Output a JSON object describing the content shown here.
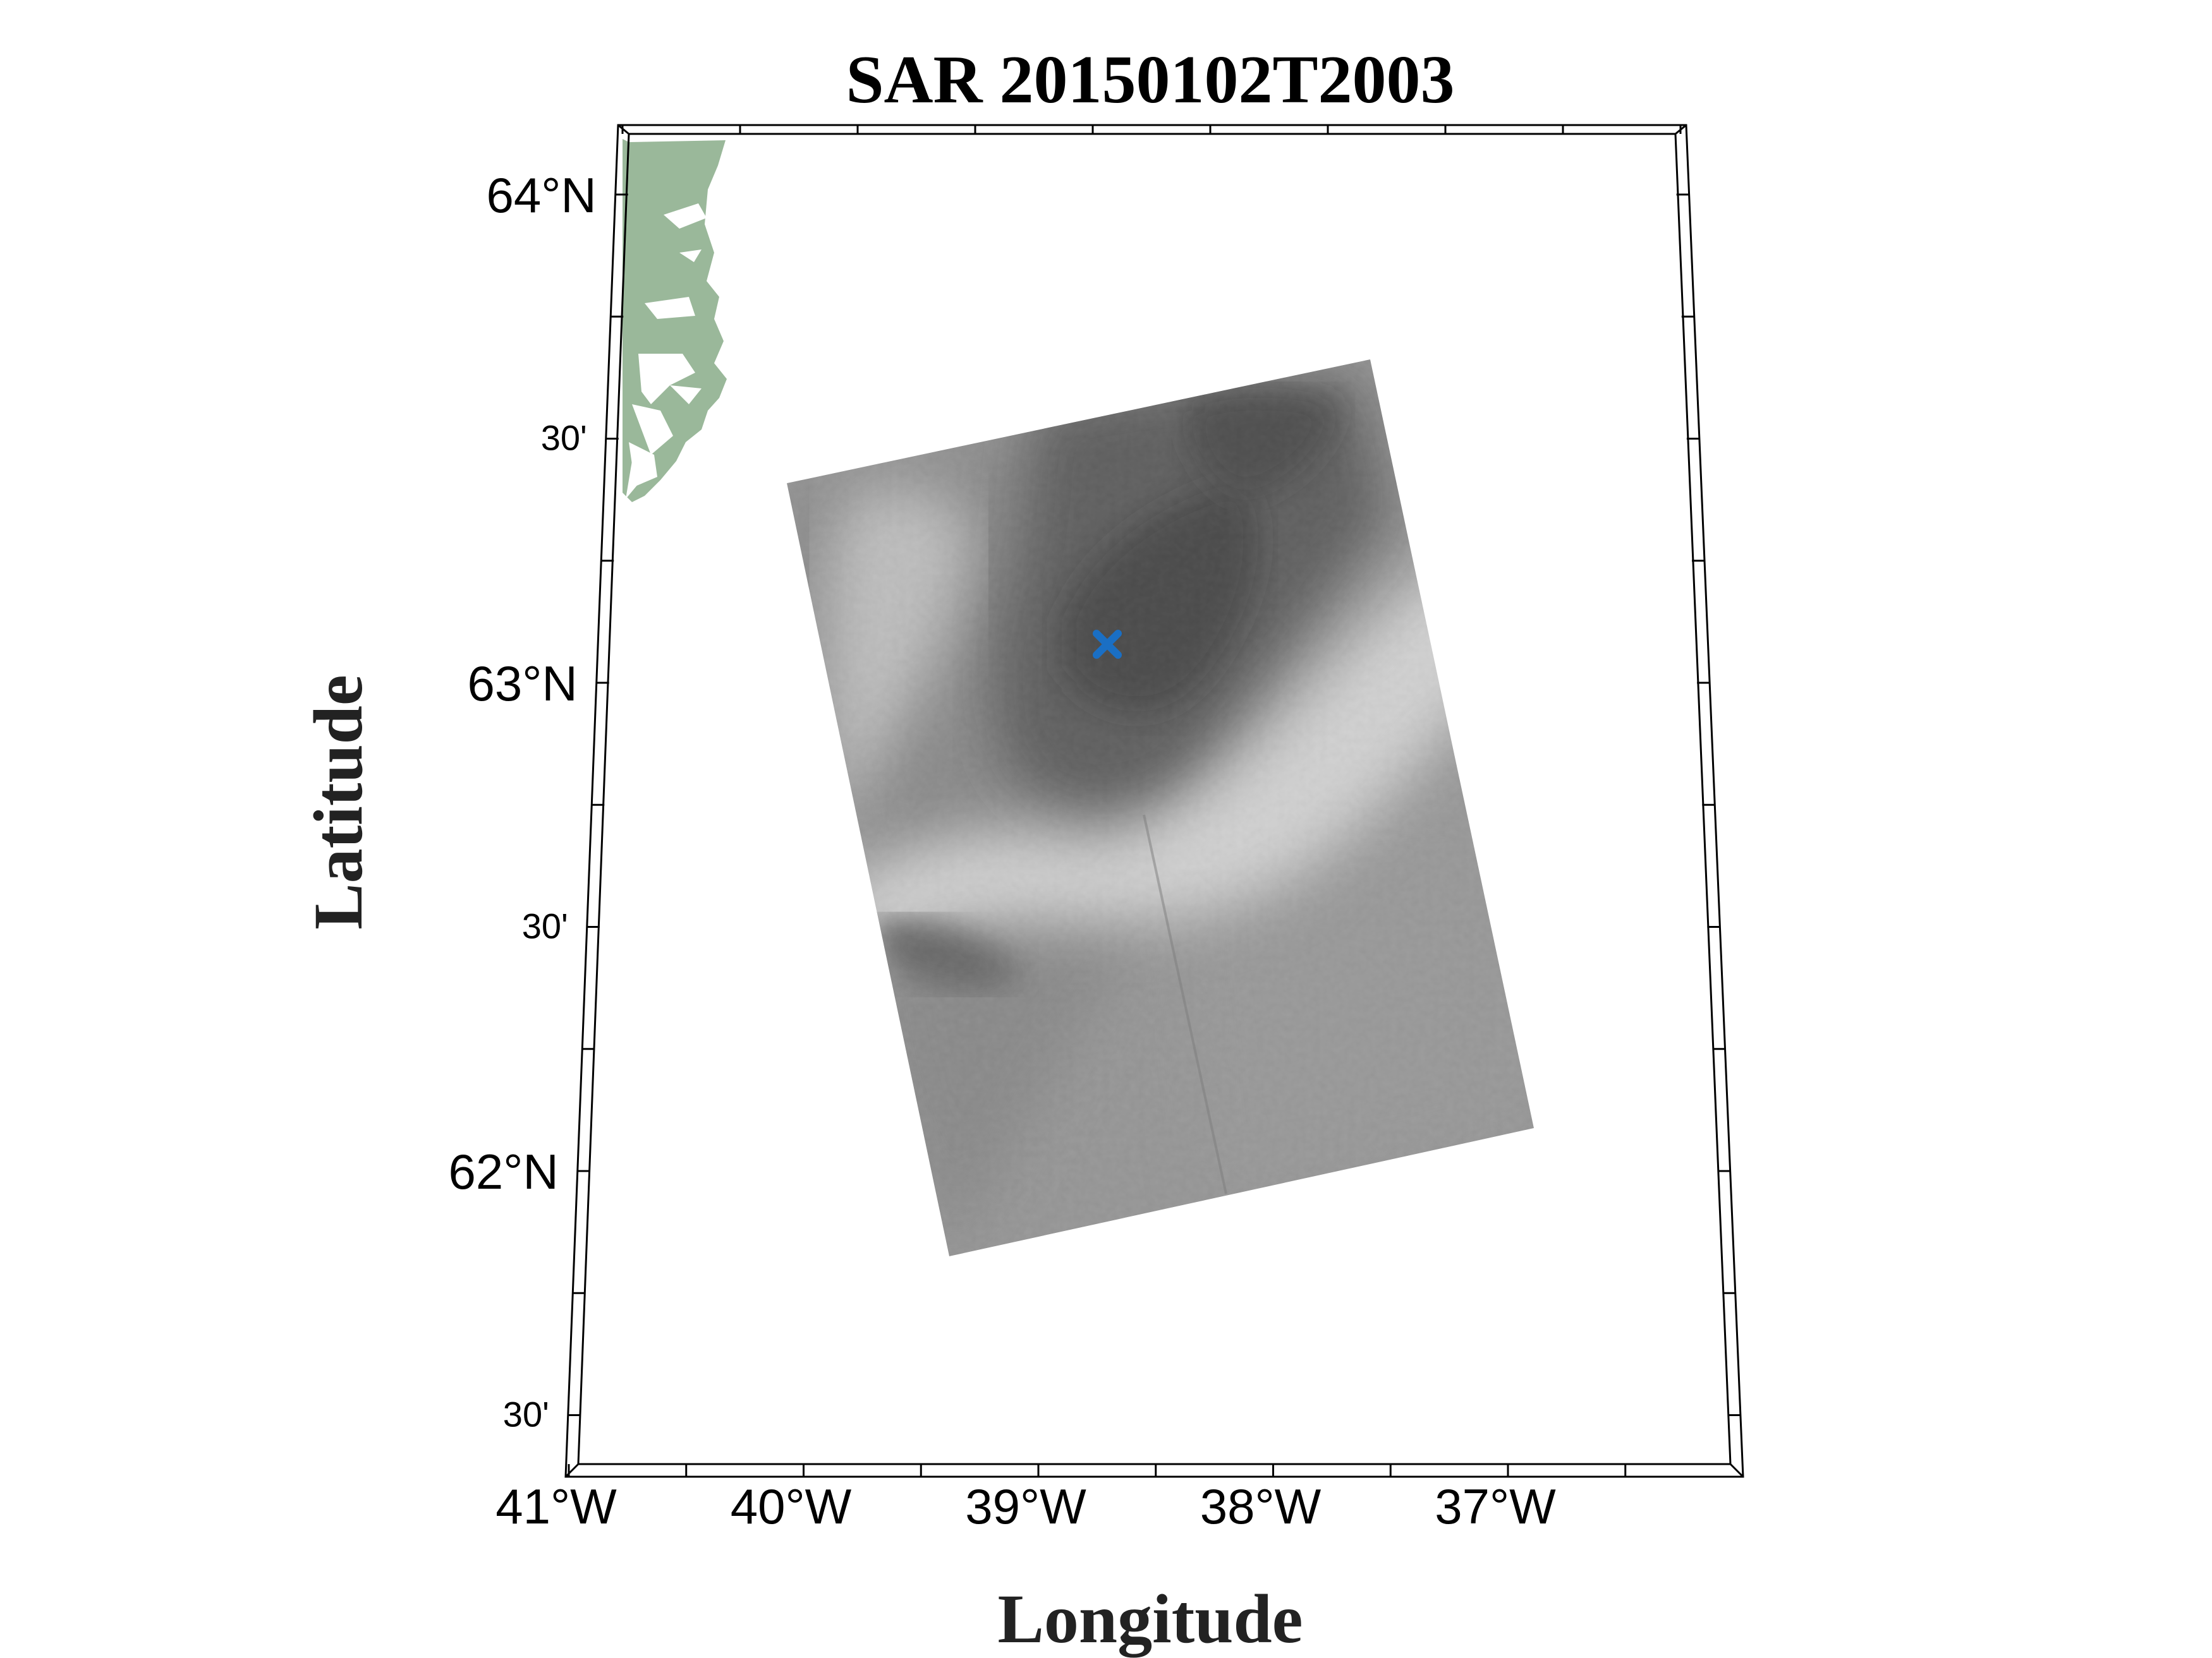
{
  "title": "SAR 20150102T2003",
  "xlabel": "Longitude",
  "ylabel": "Latitude",
  "lon_ticks": [
    {
      "lon": -41,
      "label": "41°W"
    },
    {
      "lon": -40,
      "label": "40°W"
    },
    {
      "lon": -39,
      "label": "39°W"
    },
    {
      "lon": -38,
      "label": "38°W"
    },
    {
      "lon": -37,
      "label": "37°W"
    }
  ],
  "lat_ticks": [
    {
      "lat": 64.0,
      "label": "64°N",
      "major": true
    },
    {
      "lat": 63.5,
      "label": "30'",
      "major": false
    },
    {
      "lat": 63.0,
      "label": "63°N",
      "major": true
    },
    {
      "lat": 62.5,
      "label": "30'",
      "major": false
    },
    {
      "lat": 62.0,
      "label": "62°N",
      "major": true
    },
    {
      "lat": 61.5,
      "label": "30'",
      "major": false
    }
  ],
  "map_extent": {
    "lon_min": -41,
    "lon_max": -36.5,
    "lat_min": 61.45,
    "lat_max": 64.15
  },
  "marker": {
    "lon": -38.74,
    "lat": 63.07,
    "symbol": "x",
    "color": "#1a6fc4"
  },
  "colors": {
    "land": "#9ab89a",
    "frame": "#000000",
    "marker": "#1a6fc4"
  },
  "layers": {
    "sar_swath": "grayscale-sar-backscatter",
    "land": "greenland-coast"
  }
}
